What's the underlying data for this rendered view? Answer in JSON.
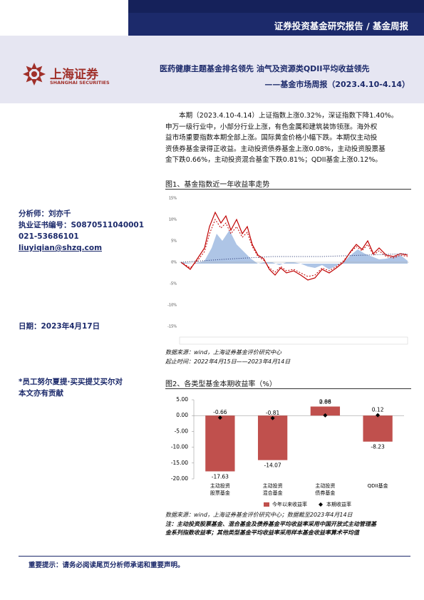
{
  "header": {
    "category": "证券投资基金研究报告 / 基金周报",
    "logo_cn": "上海证券",
    "logo_en": "SHANGHAI SECURITIES",
    "title_line1": "医药健康主题基金排名领先    油气及资源类QDII平均收益领先",
    "title_line2": "——基金市场周报（2023.4.10-4.14）"
  },
  "sidebar": {
    "analyst": "分析师：刘亦千",
    "license": "执业证书编号：S0870511040001",
    "phone": "021-53686101",
    "email": "liuyiqian@shzq.com",
    "date": "日期：2023年4月17日",
    "contributor_line1": "*员工努尔夏提·买买提艾买尔对",
    "contributor_line2": "本文亦有贡献"
  },
  "body": {
    "lines": [
      "本期（2023.4.10-4.14）上证指数上涨0.32%，深证指数下降1.40%。",
      "申万一级行业中，小部分行业上涨，有色金属和建筑装饰领涨。海外权",
      "益市场重要指数本期全部上涨。国际黄金价格小幅下跌。本期仅主动投",
      "资债券基金录得正收益。主动投资债券基金上涨0.08%，主动投资股票基",
      "金下跌0.66%，主动投资混合基金下跌0.81%；QDII基金上涨0.12%。"
    ]
  },
  "figure1": {
    "title": "图1、基金指数近一年收益率走势",
    "yticks": [
      "15%",
      "10%",
      "5%",
      "0%",
      "-5%",
      "-10%",
      "-15%"
    ],
    "source": "数据来源：wind，上海证券基金评价研究中心",
    "period": "起止时间：2022年4月15日——2023年4月14日"
  },
  "figure2": {
    "title": "图2、各类型基金本期收益率（%）",
    "source": "数据来源：wind，上海证券基金评价研究中心；数据截至2023年4月14日",
    "note1": "注：主动投资股票基金、混合基金及债券基金平均收益率采用中国开放式主动管理基",
    "note2": "金系列指数收益率；其他类型基金平均收益率采用样本基金收益率算术平均值"
  },
  "chart_data": {
    "type": "bar",
    "categories": [
      [
        "主动投资",
        "股票基金"
      ],
      [
        "主动投资",
        "混合基金"
      ],
      [
        "主动投资",
        "债券基金"
      ],
      [
        "QDII基金"
      ]
    ],
    "series": [
      {
        "name": "今年以来收益率",
        "color": "#c0504d",
        "values": [
          -17.63,
          -14.07,
          2.86,
          -8.23
        ]
      },
      {
        "name": "本期收益率",
        "color": "#000000",
        "values": [
          -0.66,
          -0.81,
          0.08,
          0.12
        ]
      }
    ],
    "ylim": [
      -20,
      5
    ],
    "yticks": [
      {
        "value": 5,
        "label": "5.00"
      },
      {
        "value": 0,
        "label": "0.00"
      },
      {
        "value": -5,
        "label": "-5.00"
      },
      {
        "value": -10,
        "label": "-10.00"
      },
      {
        "value": -15,
        "label": "-15.00"
      },
      {
        "value": -20,
        "label": "-20.00"
      }
    ]
  },
  "footer": {
    "notice": "重要提示：请务必阅读尾页分析师承诺和重要声明。"
  }
}
